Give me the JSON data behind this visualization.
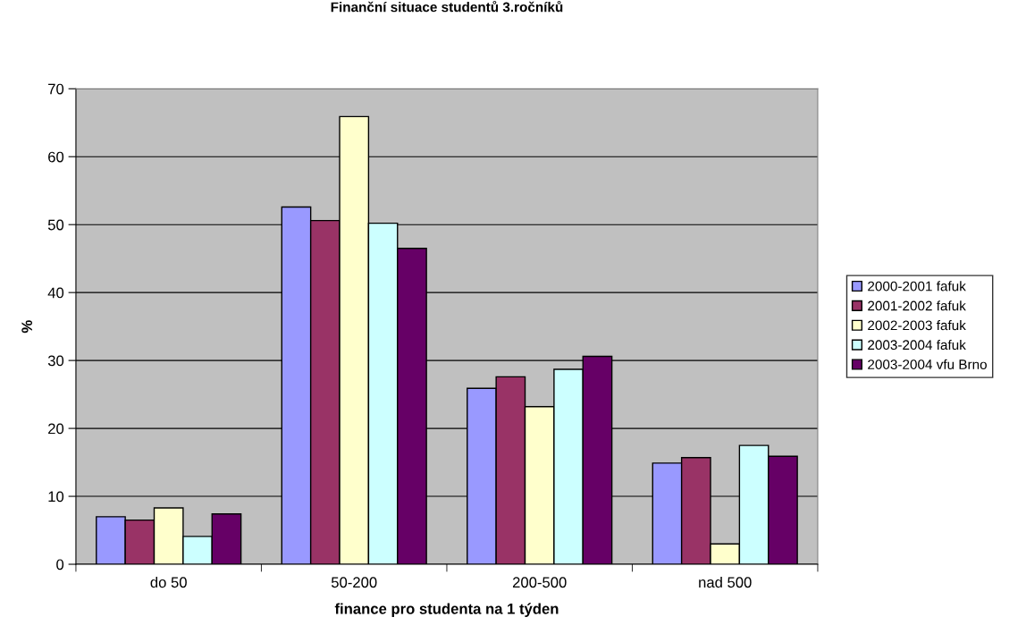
{
  "chart_data": {
    "type": "bar",
    "title": "Finanční situace studentů 3.ročníků",
    "xlabel": "finance pro studenta na 1 týden",
    "ylabel": "%",
    "categories": [
      "do 50",
      "50-200",
      "200-500",
      "nad 500"
    ],
    "series": [
      {
        "name": "2000-2001 fafuk",
        "color": "#9999ff",
        "values": [
          7.0,
          52.6,
          25.9,
          14.9
        ]
      },
      {
        "name": "2001-2002 fafuk",
        "color": "#993366",
        "values": [
          6.5,
          50.6,
          27.6,
          15.7
        ]
      },
      {
        "name": "2002-2003 fafuk",
        "color": "#ffffcc",
        "values": [
          8.3,
          65.9,
          23.2,
          3.0
        ]
      },
      {
        "name": "2003-2004 fafuk",
        "color": "#ccffff",
        "values": [
          4.1,
          50.2,
          28.7,
          17.5
        ]
      },
      {
        "name": "2003-2004 vfu Brno",
        "color": "#660066",
        "values": [
          7.4,
          46.5,
          30.6,
          15.9
        ]
      }
    ],
    "ylim": [
      0,
      70
    ],
    "yticks": [
      0,
      10,
      20,
      30,
      40,
      50,
      60,
      70
    ],
    "grid": "y",
    "legend": "right"
  }
}
